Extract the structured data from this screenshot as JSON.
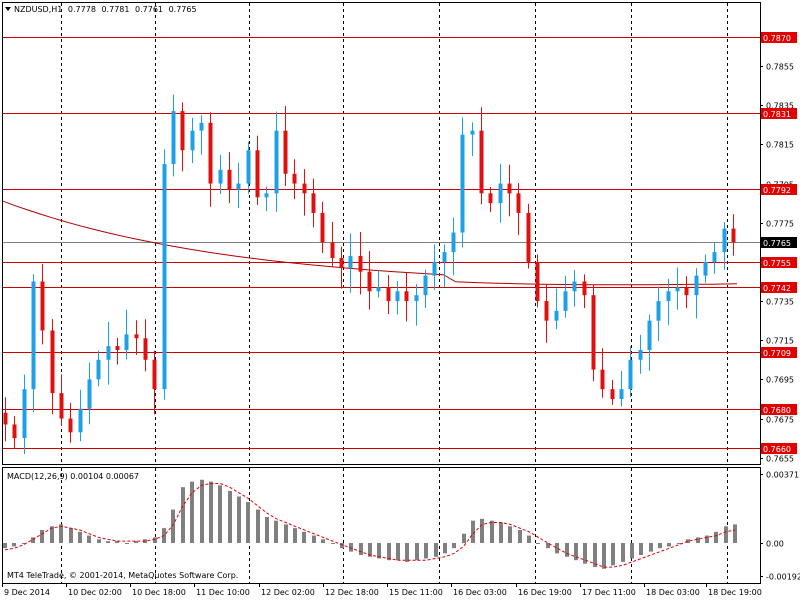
{
  "window": {
    "symbol": "NZDUSD,H1",
    "open": "0.7778",
    "high": "0.7781",
    "low": "0.7761",
    "close": "0.7765",
    "copyright": "MT4 TeleTrade, © 2001-2014, MetaQuotes Software Corp."
  },
  "colors": {
    "bull": "#1ea0e8",
    "bear": "#e01010",
    "level_line": "#cc0000",
    "ma_line": "#b00000",
    "grid": "#000000",
    "macd_hist": "#808080",
    "macd_signal": "#e00000",
    "price_tag_bg": "#e00000"
  },
  "price_axis": {
    "ticks": [
      "0.7870",
      "0.7855",
      "0.7835",
      "0.7815",
      "0.7795",
      "0.7775",
      "0.7755",
      "0.7735",
      "0.7715",
      "0.7695",
      "0.7675",
      "0.7655"
    ]
  },
  "levels": [
    {
      "price": 0.787,
      "label": "0.7870"
    },
    {
      "price": 0.7831,
      "label": "0.7831"
    },
    {
      "price": 0.7792,
      "label": "0.7792"
    },
    {
      "price": 0.7755,
      "label": "0.7755"
    },
    {
      "price": 0.7742,
      "label": "0.7742"
    },
    {
      "price": 0.7709,
      "label": "0.7709"
    },
    {
      "price": 0.768,
      "label": "0.7680"
    },
    {
      "price": 0.766,
      "label": "0.7660"
    }
  ],
  "current_price": {
    "price": 0.7765,
    "label": "0.7765"
  },
  "time_axis": {
    "labels": [
      "9 Dec 2014",
      "10 Dec 02:00",
      "10 Dec 18:00",
      "11 Dec 10:00",
      "12 Dec 02:00",
      "12 Dec 18:00",
      "15 Dec 11:00",
      "16 Dec 03:00",
      "16 Dec 19:00",
      "17 Dec 11:00",
      "18 Dec 03:00",
      "18 Dec 19:00"
    ]
  },
  "macd": {
    "title": "MACD(12,26,9) 0.00104 0.00067",
    "ticks": [
      "0.00371",
      "0.00",
      "-0.00192"
    ]
  },
  "chart_data": [
    {
      "type": "candlestick",
      "title": "NZDUSD,H1",
      "ylim": [
        0.765,
        0.7885
      ],
      "x_labels": [
        "9 Dec 2014",
        "10 Dec 02:00",
        "10 Dec 18:00",
        "11 Dec 10:00",
        "12 Dec 02:00",
        "12 Dec 18:00",
        "15 Dec 11:00",
        "16 Dec 03:00",
        "16 Dec 19:00",
        "17 Dec 11:00",
        "18 Dec 03:00",
        "18 Dec 19:00"
      ],
      "close_path": [
        0.7672,
        0.7665,
        0.769,
        0.7745,
        0.772,
        0.7688,
        0.7675,
        0.7668,
        0.768,
        0.7695,
        0.7705,
        0.7712,
        0.771,
        0.7718,
        0.7716,
        0.7705,
        0.769,
        0.7805,
        0.7832,
        0.7812,
        0.7822,
        0.7826,
        0.7795,
        0.7802,
        0.7792,
        0.7795,
        0.7812,
        0.7788,
        0.779,
        0.7822,
        0.78,
        0.7795,
        0.779,
        0.778,
        0.7765,
        0.7757,
        0.7752,
        0.7758,
        0.775,
        0.774,
        0.7742,
        0.7735,
        0.774,
        0.7735,
        0.7738,
        0.7748,
        0.7755,
        0.776,
        0.777,
        0.782,
        0.7822,
        0.779,
        0.7785,
        0.7795,
        0.779,
        0.778,
        0.7755,
        0.7735,
        0.7725,
        0.773,
        0.774,
        0.7745,
        0.7738,
        0.77,
        0.769,
        0.7685,
        0.769,
        0.7705,
        0.771,
        0.7725,
        0.7735,
        0.774,
        0.7742,
        0.7738,
        0.7748,
        0.7755,
        0.776,
        0.7772,
        0.7765
      ],
      "moving_average": {
        "start": 0.7786,
        "end": 0.7742
      },
      "series": [
        {
          "name": "NZDUSD,H1"
        }
      ]
    },
    {
      "type": "bar",
      "title": "MACD(12,26,9) 0.00104 0.00067",
      "ylim": [
        -0.00192,
        0.00371
      ],
      "histogram": [
        -0.0003,
        -0.0002,
        0.0,
        0.0003,
        0.0007,
        0.0009,
        0.001,
        0.0008,
        0.0006,
        0.0004,
        0.0002,
        0.0001,
        0.0001,
        0.0,
        0.0001,
        0.0002,
        0.0003,
        0.0008,
        0.0018,
        0.003,
        0.0033,
        0.0034,
        0.0033,
        0.0031,
        0.0028,
        0.0025,
        0.0022,
        0.0018,
        0.0014,
        0.0012,
        0.001,
        0.0008,
        0.0006,
        0.0004,
        0.0002,
        0.0,
        -0.0003,
        -0.0005,
        -0.0007,
        -0.0008,
        -0.0009,
        -0.001,
        -0.001,
        -0.0011,
        -0.001,
        -0.0009,
        -0.0008,
        -0.0006,
        -0.0003,
        0.0005,
        0.0012,
        0.0013,
        0.0012,
        0.0011,
        0.0009,
        0.0007,
        0.0004,
        0.0,
        -0.0003,
        -0.0006,
        -0.0008,
        -0.001,
        -0.0012,
        -0.0014,
        -0.0015,
        -0.0013,
        -0.0011,
        -0.0009,
        -0.0007,
        -0.0005,
        -0.0003,
        -0.0002,
        0.0,
        0.0002,
        0.0003,
        0.0004,
        0.0006,
        0.0009,
        0.001
      ],
      "signal_line": [
        -0.0004,
        -0.0003,
        -0.0001,
        0.0002,
        0.0005,
        0.0008,
        0.0009,
        0.0008,
        0.0007,
        0.0005,
        0.0003,
        0.0002,
        0.0001,
        0.0001,
        0.0001,
        0.0001,
        0.0002,
        0.0004,
        0.001,
        0.002,
        0.0027,
        0.0031,
        0.0032,
        0.0032,
        0.003,
        0.0027,
        0.0024,
        0.002,
        0.0016,
        0.0013,
        0.0011,
        0.0009,
        0.0007,
        0.0005,
        0.0003,
        0.0001,
        -0.0001,
        -0.0003,
        -0.0005,
        -0.0007,
        -0.0008,
        -0.0009,
        -0.001,
        -0.001,
        -0.001,
        -0.001,
        -0.0009,
        -0.0008,
        -0.0006,
        -0.0002,
        0.0005,
        0.001,
        0.0011,
        0.0011,
        0.001,
        0.0008,
        0.0006,
        0.0003,
        0.0,
        -0.0003,
        -0.0006,
        -0.0008,
        -0.001,
        -0.0012,
        -0.0014,
        -0.0014,
        -0.0013,
        -0.0011,
        -0.0009,
        -0.0007,
        -0.0005,
        -0.0003,
        -0.0001,
        0.0001,
        0.0002,
        0.0003,
        0.0004,
        0.0006,
        0.0007
      ]
    }
  ]
}
